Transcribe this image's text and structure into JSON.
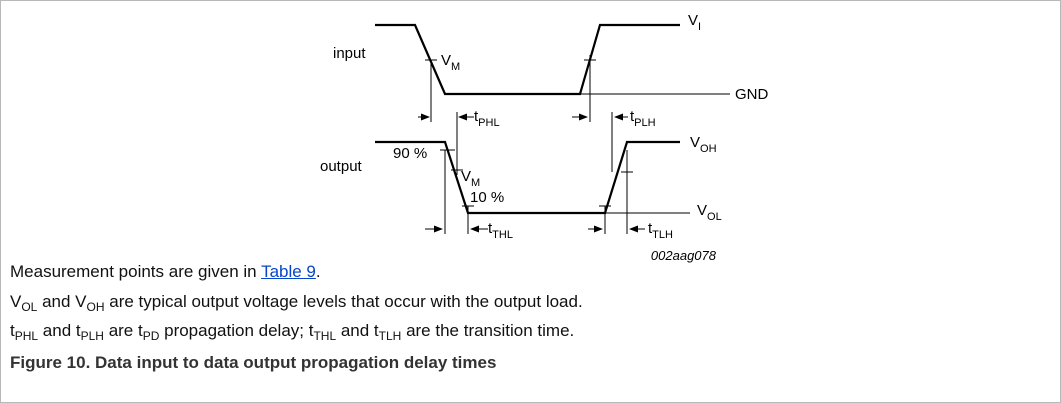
{
  "diagram": {
    "input": "input",
    "output": "output",
    "vi": {
      "main": "V",
      "sub": "I"
    },
    "gnd": "GND",
    "vm_in": {
      "main": "V",
      "sub": "M"
    },
    "vm_out": {
      "main": "V",
      "sub": "M"
    },
    "tphl": {
      "main": "t",
      "sub": "PHL"
    },
    "tplh": {
      "main": "t",
      "sub": "PLH"
    },
    "voh": {
      "main": "V",
      "sub": "OH"
    },
    "vol": {
      "main": "V",
      "sub": "OL"
    },
    "p90": "90 %",
    "p10": "10 %",
    "tthl": {
      "main": "t",
      "sub": "THL"
    },
    "ttlh": {
      "main": "t",
      "sub": "TLH"
    },
    "code": "002aag078"
  },
  "notes": [
    [
      {
        "text": "Measurement points are given in "
      },
      {
        "link": "Table 9"
      },
      {
        "text": "."
      }
    ],
    [
      {
        "text": "V"
      },
      {
        "sub": "OL"
      },
      {
        "text": " and V"
      },
      {
        "sub": "OH"
      },
      {
        "text": " are typical output voltage levels that occur with the output load."
      }
    ],
    [
      {
        "text": "t"
      },
      {
        "sub": "PHL"
      },
      {
        "text": " and t"
      },
      {
        "sub": "PLH"
      },
      {
        "text": " are t"
      },
      {
        "sub": "PD"
      },
      {
        "text": " propagation delay; t"
      },
      {
        "sub": "THL"
      },
      {
        "text": " and t"
      },
      {
        "sub": "TLH"
      },
      {
        "text": " are the transition time."
      }
    ]
  ],
  "caption": "Figure 10. Data input to data output propagation delay times"
}
